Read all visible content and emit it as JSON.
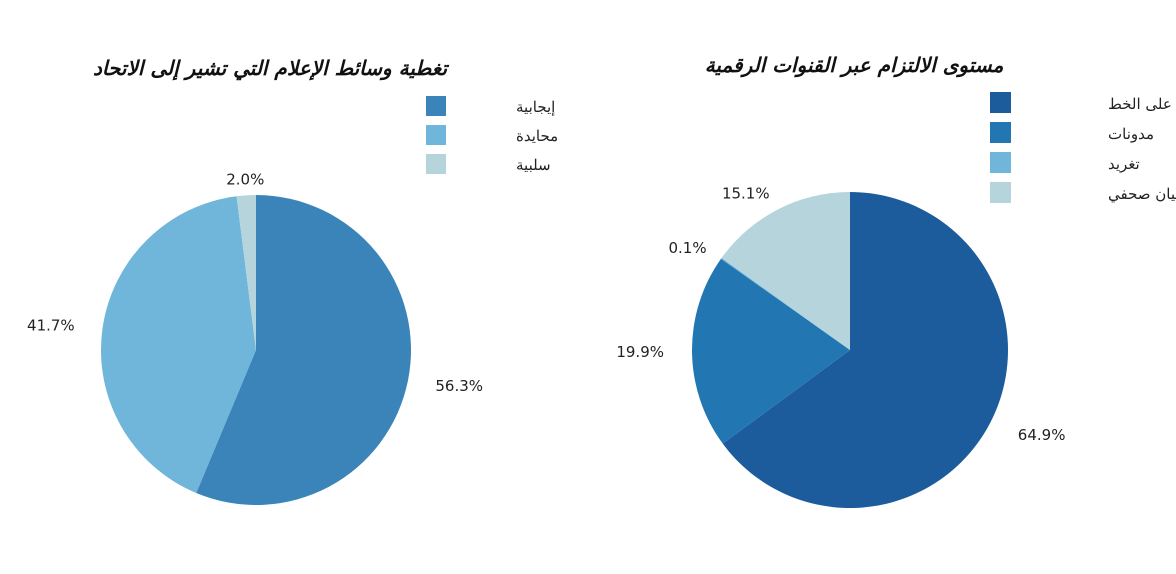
{
  "chart_data": [
    {
      "type": "pie",
      "title": "تغطية وسائط الإعلام التي تشير إلى الاتحاد",
      "legend_position": "top-right",
      "categories": [
        "إيجابية",
        "محايدة",
        "سلبية"
      ],
      "values": [
        56.3,
        41.7,
        2.0
      ],
      "labels": [
        "56.3%",
        "41.7%",
        "2.0%"
      ],
      "colors": [
        "#3a84b9",
        "#70b6da",
        "#b6d4dc"
      ]
    },
    {
      "type": "pie",
      "title": "مستوى الالتزام عبر القنوات الرقمية",
      "legend_position": "top-right",
      "categories": [
        "أنباء على الخط",
        "مدونات",
        "تغريد",
        "بيان صحفي"
      ],
      "values": [
        64.9,
        19.9,
        0.1,
        15.1
      ],
      "labels": [
        "64.9%",
        "19.9%",
        "0.1%",
        "15.1%"
      ],
      "colors": [
        "#1c5c9c",
        "#2277b3",
        "#70b6da",
        "#b6d4dc"
      ]
    }
  ]
}
